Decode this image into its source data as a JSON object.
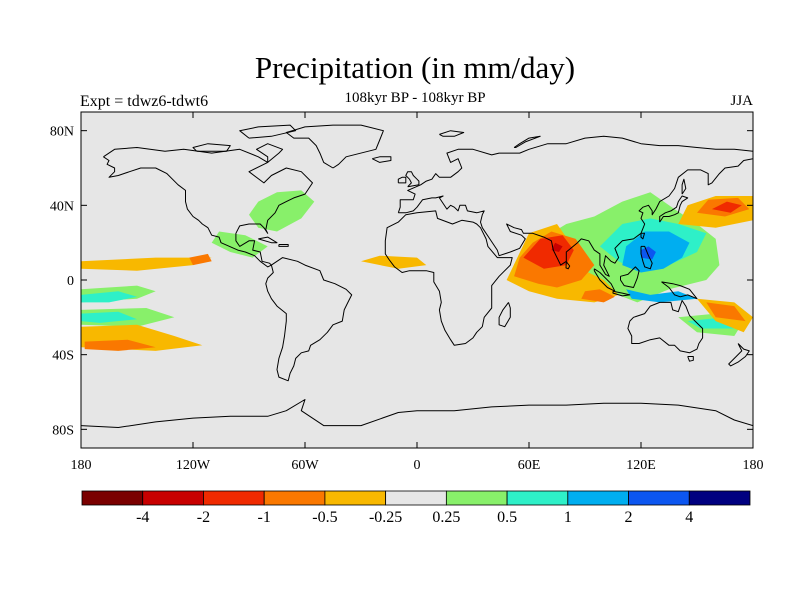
{
  "title": "Precipitation (in mm/day)",
  "subtitle": "108kyr BP - 108kyr BP",
  "left_label": "Expt = tdwz6-tdwt6",
  "right_label": "JJA",
  "map": {
    "background_color": "#e6e6e6",
    "lon_range": [
      -180,
      180
    ],
    "lat_range": [
      -90,
      90
    ],
    "lon_ticks": [
      {
        "value": -180,
        "label": "180"
      },
      {
        "value": -120,
        "label": "120W"
      },
      {
        "value": -60,
        "label": "60W"
      },
      {
        "value": 0,
        "label": "0"
      },
      {
        "value": 60,
        "label": "60E"
      },
      {
        "value": 120,
        "label": "120E"
      },
      {
        "value": 180,
        "label": "180"
      }
    ],
    "lat_ticks": [
      {
        "value": 80,
        "label": "80N"
      },
      {
        "value": 40,
        "label": "40N"
      },
      {
        "value": 0,
        "label": "0"
      },
      {
        "value": -40,
        "label": "40S"
      },
      {
        "value": -80,
        "label": "80S"
      }
    ],
    "anomaly_regions": [
      {
        "level": "+0.25",
        "color": "#88f06a",
        "poly": [
          [
            60,
            -5
          ],
          [
            160,
            -5
          ],
          [
            160,
            35
          ],
          [
            60,
            35
          ]
        ]
      },
      {
        "level": "+0.5",
        "color": "#2ef0c8",
        "poly": [
          [
            100,
            10
          ],
          [
            155,
            10
          ],
          [
            155,
            35
          ],
          [
            100,
            35
          ]
        ]
      },
      {
        "level": "+1",
        "color": "#00aef0",
        "poly": [
          [
            110,
            8
          ],
          [
            140,
            8
          ],
          [
            140,
            28
          ],
          [
            110,
            28
          ]
        ]
      },
      {
        "level": "+2",
        "color": "#0c56f0",
        "poly": [
          [
            120,
            12
          ],
          [
            128,
            12
          ],
          [
            128,
            18
          ],
          [
            120,
            18
          ]
        ]
      },
      {
        "level": "-0.25",
        "color": "#f8b800",
        "poly": [
          [
            -180,
            5
          ],
          [
            -160,
            5
          ],
          [
            -160,
            10
          ],
          [
            -180,
            10
          ]
        ]
      },
      {
        "level": "-0.5",
        "color": "#fa7800",
        "poly": [
          [
            -178,
            -35
          ],
          [
            -140,
            -35
          ],
          [
            -140,
            -27
          ],
          [
            -178,
            -27
          ]
        ]
      },
      {
        "level": "-1",
        "color": "#f02a00",
        "poly": [
          [
            55,
            10
          ],
          [
            85,
            10
          ],
          [
            85,
            25
          ],
          [
            55,
            25
          ]
        ]
      },
      {
        "level": "-2",
        "color": "#c80000",
        "poly": [
          [
            72,
            16
          ],
          [
            78,
            16
          ],
          [
            78,
            20
          ],
          [
            72,
            20
          ]
        ]
      }
    ]
  },
  "colorbar": {
    "colors": [
      "#7a0000",
      "#c80000",
      "#f02a00",
      "#fa7800",
      "#f8b800",
      "#e6e6e6",
      "#88f06a",
      "#2ef0c8",
      "#00aef0",
      "#0c56f0",
      "#000080"
    ],
    "labels": [
      "-4",
      "-2",
      "-1",
      "-0.5",
      "-0.25",
      "0.25",
      "0.5",
      "1",
      "2",
      "4"
    ]
  }
}
